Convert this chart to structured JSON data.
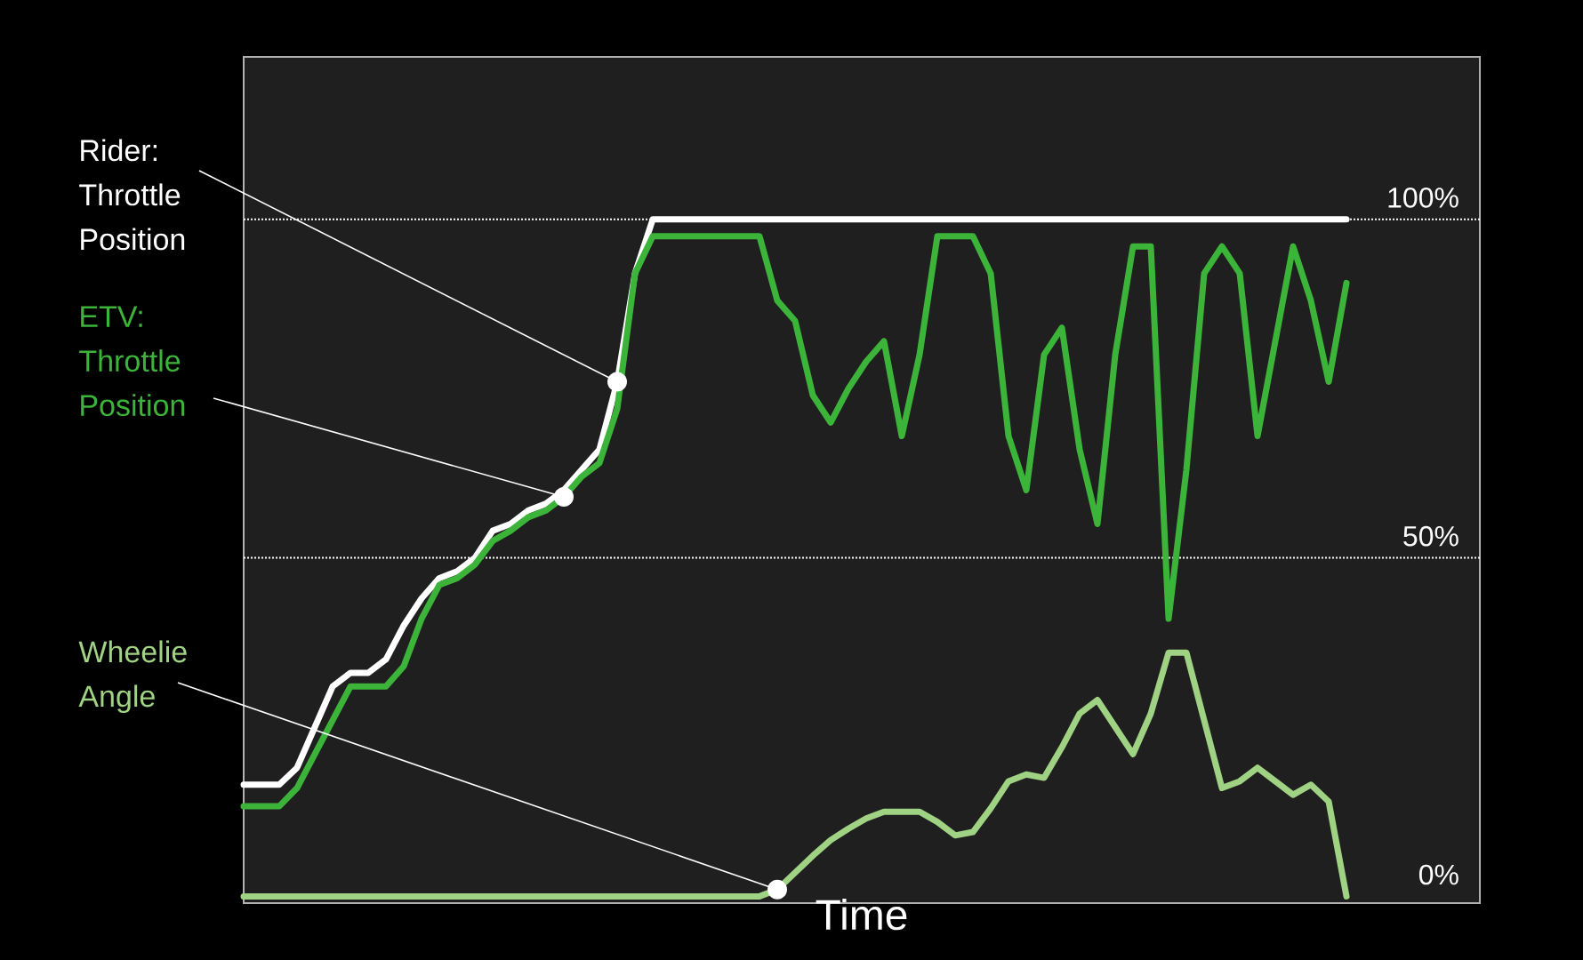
{
  "chart_data": {
    "type": "line",
    "xlabel": "Time",
    "categories": [
      null,
      null,
      null,
      null,
      null,
      null,
      null,
      null,
      null,
      null,
      null,
      null,
      null,
      null,
      null,
      null,
      null,
      null,
      null,
      null,
      null,
      null,
      null,
      null,
      null,
      null,
      null,
      null,
      null,
      null,
      null,
      null,
      null,
      null,
      null,
      null,
      null,
      null,
      null,
      null,
      null,
      null,
      null,
      null,
      null,
      null,
      null,
      null,
      null,
      null,
      null,
      null,
      null,
      null,
      null,
      null,
      null,
      null,
      null,
      null,
      null,
      null,
      null,
      null,
      null,
      null,
      null,
      null,
      null,
      null
    ],
    "series": [
      {
        "name": "Rider: Throttle Position",
        "color": "#ffffff",
        "values": [
          16.5,
          16.5,
          16.5,
          19,
          25,
          31,
          33,
          33,
          35,
          40,
          44,
          47,
          48,
          50,
          54,
          55,
          57,
          58,
          60,
          63,
          66,
          76,
          92,
          100,
          100,
          100,
          100,
          100,
          100,
          100,
          100,
          100,
          100,
          100,
          100,
          100,
          100,
          100,
          100,
          100,
          100,
          100,
          100,
          100,
          100,
          100,
          100,
          100,
          100,
          100,
          100,
          100,
          100,
          100,
          100,
          100,
          100,
          100,
          100,
          100,
          100,
          100,
          100,
          null,
          null,
          null,
          null,
          null,
          null,
          null
        ]
      },
      {
        "name": "ETV: Throttle Position",
        "color": "#3cb43a",
        "values": [
          13.3,
          13.3,
          13.3,
          16,
          21,
          26,
          31,
          31,
          31,
          34,
          41,
          46,
          47,
          49,
          52.5,
          54,
          56,
          57,
          59,
          62,
          64,
          72,
          92,
          97.5,
          97.5,
          97.5,
          97.5,
          97.5,
          97.5,
          97.5,
          88,
          85,
          74,
          70,
          75,
          79,
          82,
          68,
          80,
          97.5,
          97.5,
          97.5,
          92,
          68,
          60,
          80,
          84,
          66,
          55,
          80,
          96,
          96,
          41,
          63,
          92,
          96,
          92,
          68,
          82,
          96,
          88,
          76,
          90.6,
          null,
          null,
          null,
          null,
          null,
          null,
          null
        ]
      },
      {
        "name": "Wheelie Angle",
        "color": "#a0d283",
        "values": [
          0,
          0,
          0,
          0,
          0,
          0,
          0,
          0,
          0,
          0,
          0,
          0,
          0,
          0,
          0,
          0,
          0,
          0,
          0,
          0,
          0,
          0,
          0,
          0,
          0,
          0,
          0,
          0,
          0,
          0,
          1,
          3.5,
          6,
          8.3,
          10,
          11.5,
          12.5,
          12.5,
          12.5,
          11,
          9,
          9.5,
          13,
          17,
          18,
          17.5,
          22,
          27,
          29,
          25,
          21,
          27,
          36,
          36,
          26,
          16,
          17,
          19,
          17,
          15,
          16.5,
          14,
          0,
          null,
          null,
          null,
          null,
          null,
          null,
          null
        ]
      }
    ],
    "ylim": [
      -1,
      124
    ],
    "yticks": [
      {
        "value": 0,
        "label": "0%"
      },
      {
        "value": 50,
        "label": "50%"
      },
      {
        "value": 100,
        "label": "100%"
      }
    ],
    "tick_labels": "y",
    "ref_lines": [
      {
        "axis": "y",
        "value": 50,
        "color": "#ffffff",
        "line_style": "dotted"
      },
      {
        "axis": "y",
        "value": 100,
        "color": "#ffffff",
        "line_style": "dotted"
      }
    ]
  }
}
